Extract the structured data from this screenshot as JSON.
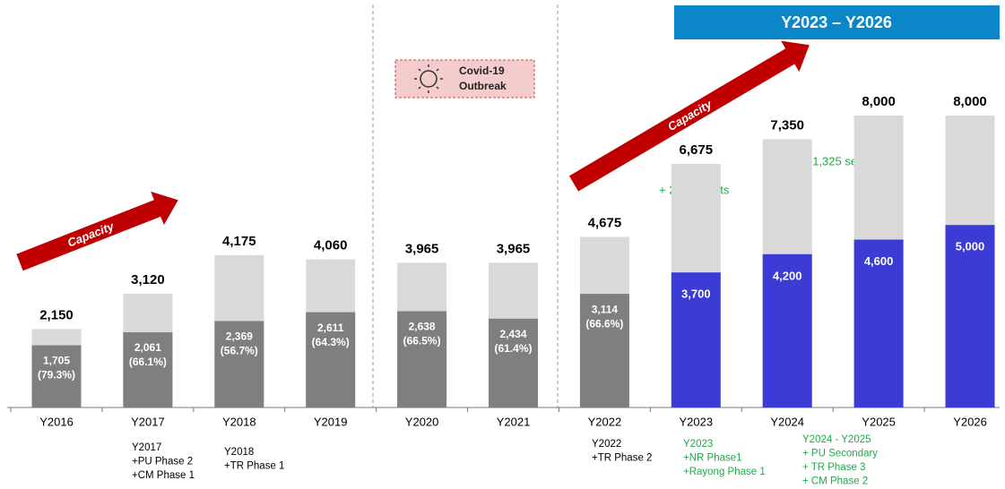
{
  "chart_data": {
    "type": "overlap-bar",
    "categories": [
      "Y2016",
      "Y2017",
      "Y2018",
      "Y2019",
      "Y2020",
      "Y2021",
      "Y2022",
      "Y2023",
      "Y2024",
      "Y2025",
      "Y2026"
    ],
    "series": [
      {
        "values": [
          2150,
          3120,
          4175,
          4060,
          3965,
          3965,
          4675,
          6675,
          7350,
          8000,
          8000
        ],
        "value_labels": [
          "2,150",
          "3,120",
          "4,175",
          "4,060",
          "3,965",
          "3,965",
          "4,675",
          "6,675",
          "7,350",
          "8,000",
          "8,000"
        ],
        "color": "#d9d9d9"
      },
      {
        "values": [
          1705,
          2061,
          2369,
          2611,
          2638,
          2434,
          3114,
          3700,
          4200,
          4600,
          5000
        ],
        "value_labels": [
          "1,705",
          "2,061",
          "2,369",
          "2,611",
          "2,638",
          "2,434",
          "3,114",
          "3,700",
          "4,200",
          "4,600",
          "5,000"
        ],
        "colors": [
          "#7f7f7f",
          "#7f7f7f",
          "#7f7f7f",
          "#7f7f7f",
          "#7f7f7f",
          "#7f7f7f",
          "#7f7f7f",
          "#3b3bd6",
          "#3b3bd6",
          "#3b3bd6",
          "#3b3bd6"
        ]
      }
    ],
    "shares": {
      "values": [
        79.3,
        66.1,
        56.7,
        64.3,
        66.5,
        61.4,
        66.6,
        null,
        null,
        null,
        null
      ],
      "value_labels": [
        "(79.3%)",
        "(66.1%)",
        "(56.7%)",
        "(64.3%)",
        "(66.5%)",
        "(61.4%)",
        "(66.6%)",
        null,
        null,
        null,
        null
      ]
    },
    "ylim": [
      0,
      8000
    ],
    "banner": "Y2023 – Y2026",
    "arrows": [
      "Capacity",
      "Capacity"
    ],
    "covid": [
      "Covid-19",
      "Outbreak"
    ],
    "seats": [
      "+ 2,000 seats",
      "+ 1,325 seats"
    ],
    "notes": [
      {
        "lines": [
          "Y2017",
          "+PU Phase 2",
          "+CM Phase 1"
        ],
        "color": "#000000"
      },
      {
        "lines": [
          "Y2018",
          "+TR Phase 1"
        ],
        "color": "#000000"
      },
      {
        "lines": [
          "Y2022",
          "+TR Phase 2"
        ],
        "color": "#000000"
      },
      {
        "lines": [
          "Y2023",
          "+NR Phase1",
          "+Rayong Phase 1"
        ],
        "color": "#22a84a"
      },
      {
        "lines": [
          "Y2024 - Y2025",
          "+ PU Secondary",
          "+ TR Phase 3",
          "+ CM Phase 2"
        ],
        "color": "#22a84a"
      }
    ]
  }
}
